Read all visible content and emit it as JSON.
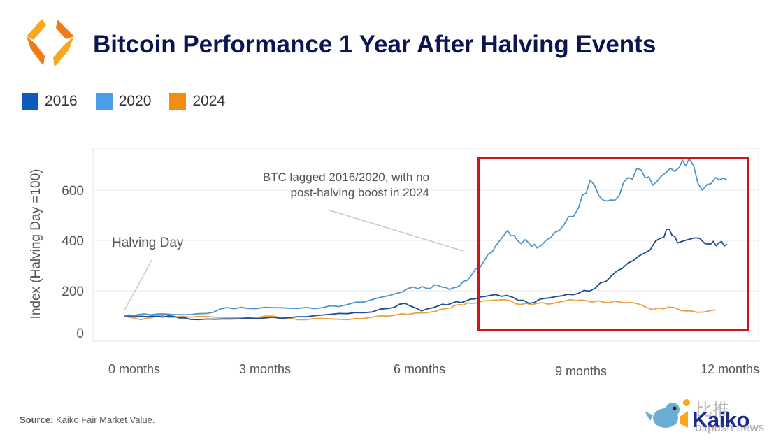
{
  "header": {
    "title": "Bitcoin Performance 1 Year After Halving Events",
    "logo_icon": "kaiko-hexagon-logo-icon"
  },
  "legend": [
    {
      "label": "2016",
      "color": "#0b5cbc"
    },
    {
      "label": "2020",
      "color": "#4a9fe8"
    },
    {
      "label": "2024",
      "color": "#f28c12"
    }
  ],
  "footer": {
    "source_label": "Source:",
    "source_text": "Kaiko Fair Market Value.",
    "brand": "Kaiko",
    "watermark_cn": "比推",
    "watermark_url": "bitpush.news"
  },
  "chart_data": {
    "type": "line",
    "title": "Bitcoin Performance 1 Year After Halving Events",
    "xlabel": "",
    "ylabel": "Index (Halving Day =100)",
    "xlim_days": [
      0,
      365
    ],
    "ylim": [
      0,
      750
    ],
    "yticks": [
      0,
      200,
      400,
      600
    ],
    "xtick_labels": [
      "0 months",
      "3 months",
      "6 months",
      "9 months",
      "12 months"
    ],
    "xtick_days": [
      0,
      91,
      182,
      274,
      365
    ],
    "grid": "horizontal",
    "legend_position": "top-left",
    "annotations": [
      {
        "text": "Halving Day",
        "points_to_day": 0,
        "points_to_value": 115
      },
      {
        "text_lines": [
          "BTC lagged 2016/2020, with no",
          "post-halving boost in 2024"
        ],
        "points_to_day": 203,
        "points_to_value": 350
      }
    ],
    "highlight_box": {
      "color": "#d0121b",
      "day_range": [
        207,
        365
      ],
      "value_range": [
        45,
        730
      ]
    },
    "series": [
      {
        "name": "2016",
        "color": "#0b5cbc",
        "stroke": "#1f4e8c",
        "days": [
          0,
          10,
          20,
          30,
          40,
          55,
          70,
          85,
          100,
          115,
          130,
          145,
          160,
          170,
          180,
          190,
          198,
          207,
          215,
          225,
          235,
          245,
          255,
          265,
          275,
          285,
          295,
          305,
          315,
          325,
          330,
          335,
          345,
          355,
          360,
          365
        ],
        "values": [
          100,
          99,
          98,
          98,
          86,
          87,
          89,
          92,
          93,
          101,
          110,
          113,
          130,
          150,
          120,
          140,
          150,
          160,
          175,
          185,
          175,
          150,
          170,
          180,
          190,
          210,
          260,
          310,
          350,
          410,
          445,
          390,
          410,
          385,
          390,
          385
        ]
      },
      {
        "name": "2020",
        "color": "#4a9fe8",
        "stroke": "#4e93cc",
        "days": [
          0,
          8,
          20,
          35,
          50,
          62,
          75,
          90,
          105,
          120,
          135,
          150,
          165,
          175,
          183,
          190,
          197,
          203,
          210,
          218,
          225,
          232,
          238,
          245,
          250,
          258,
          266,
          275,
          282,
          290,
          297,
          305,
          313,
          320,
          328,
          336,
          342,
          350,
          358,
          365
        ],
        "values": [
          100,
          105,
          108,
          105,
          110,
          133,
          130,
          133,
          130,
          133,
          145,
          165,
          190,
          215,
          210,
          222,
          205,
          220,
          260,
          320,
          380,
          440,
          400,
          390,
          370,
          410,
          460,
          530,
          640,
          560,
          560,
          650,
          680,
          620,
          670,
          690,
          725,
          600,
          650,
          640
        ]
      },
      {
        "name": "2024",
        "color": "#f28c12",
        "stroke": "#eba23d",
        "days": [
          0,
          10,
          20,
          30,
          45,
          60,
          75,
          90,
          105,
          120,
          135,
          150,
          165,
          175,
          185,
          195,
          203,
          210,
          220,
          230,
          240,
          250,
          260,
          270,
          280,
          290,
          300,
          310,
          320,
          330,
          340,
          350,
          358
        ],
        "values": [
          100,
          85,
          100,
          95,
          98,
          95,
          92,
          100,
          85,
          90,
          85,
          95,
          105,
          110,
          115,
          130,
          145,
          150,
          160,
          165,
          145,
          150,
          150,
          165,
          160,
          155,
          155,
          150,
          125,
          135,
          120,
          115,
          125
        ]
      }
    ]
  }
}
